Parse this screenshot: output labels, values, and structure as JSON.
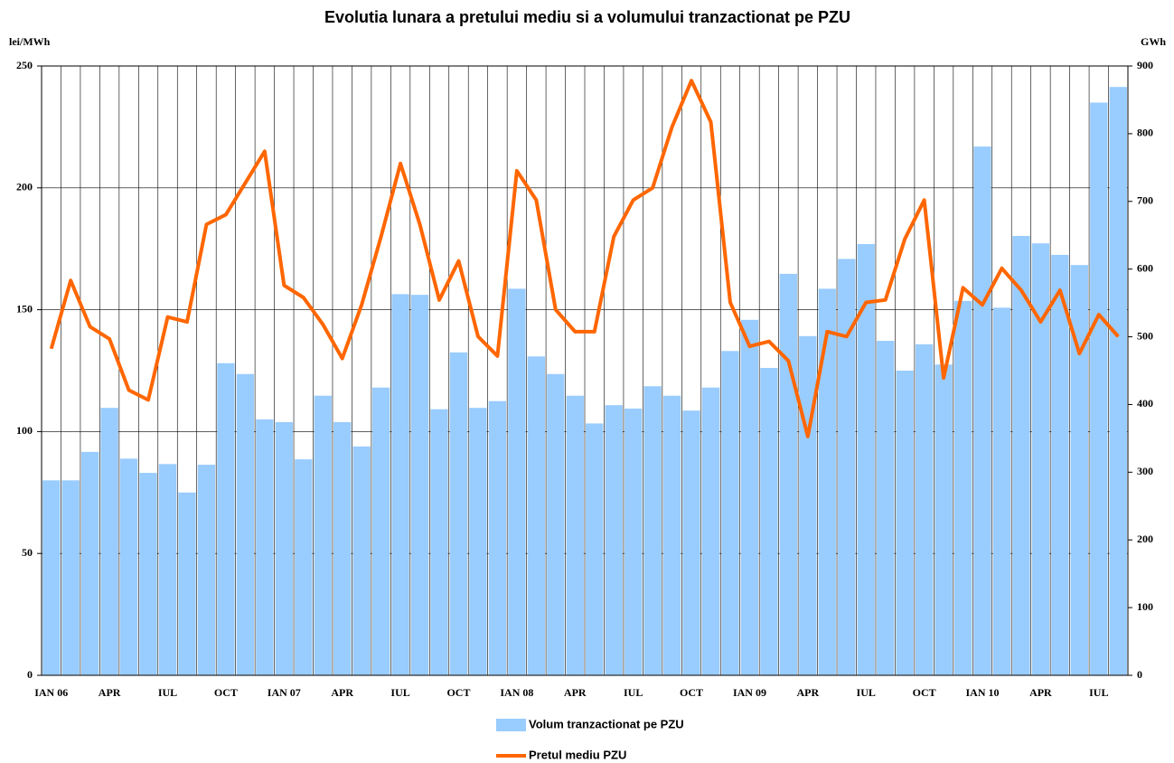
{
  "chart_data": {
    "type": "bar_line",
    "title": "Evolutia lunara a pretului mediu si a volumului tranzactionat pe PZU",
    "y_label": "lei/MWh",
    "y2_label": "GWh",
    "categories": [
      "IAN 06",
      null,
      null,
      "APR",
      null,
      null,
      "IUL",
      null,
      null,
      "OCT",
      null,
      null,
      "IAN 07",
      null,
      null,
      "APR",
      null,
      null,
      "IUL",
      null,
      null,
      "OCT",
      null,
      null,
      "IAN 08",
      null,
      null,
      "APR",
      null,
      null,
      "IUL",
      null,
      null,
      "OCT",
      null,
      null,
      "IAN 09",
      null,
      null,
      "APR",
      null,
      null,
      "IUL",
      null,
      null,
      "OCT",
      null,
      null,
      "IAN 10",
      null,
      null,
      "APR",
      null,
      null,
      "IUL",
      null
    ],
    "series": [
      {
        "name": "Volum tranzactionat pe PZU",
        "type": "bar",
        "axis": "y2",
        "color": "#99ccff",
        "values": [
          288,
          288,
          330,
          395,
          320,
          299,
          312,
          270,
          311,
          461,
          445,
          378,
          374,
          319,
          413,
          374,
          338,
          425,
          563,
          562,
          393,
          477,
          395,
          405,
          571,
          471,
          445,
          413,
          372,
          399,
          394,
          427,
          413,
          391,
          425,
          479,
          525,
          454,
          593,
          501,
          571,
          615,
          637,
          494,
          450,
          489,
          459,
          553,
          781,
          543,
          649,
          638,
          621,
          606,
          846,
          869
        ]
      },
      {
        "name": "Pretul mediu PZU",
        "type": "line",
        "axis": "y",
        "color": "#ff6600",
        "values": [
          134,
          162,
          143,
          138,
          117,
          113,
          147,
          145,
          185,
          189,
          202,
          215,
          160,
          155,
          144,
          130,
          152,
          180,
          210,
          185,
          154,
          170,
          139,
          131,
          207,
          195,
          150,
          141,
          141,
          180,
          195,
          200,
          225,
          244,
          227,
          153,
          135,
          137,
          129,
          98,
          141,
          139,
          153,
          154,
          179,
          195,
          122,
          159,
          152,
          167,
          158,
          145,
          158,
          132,
          148,
          139
        ]
      }
    ],
    "ylim": [
      0,
      250
    ],
    "yticks": [
      0,
      50,
      100,
      150,
      200,
      250
    ],
    "y2lim": [
      0,
      900
    ],
    "y2ticks": [
      0,
      100,
      200,
      300,
      400,
      500,
      600,
      700,
      800,
      900
    ],
    "grid": true,
    "legend": "bottom"
  }
}
